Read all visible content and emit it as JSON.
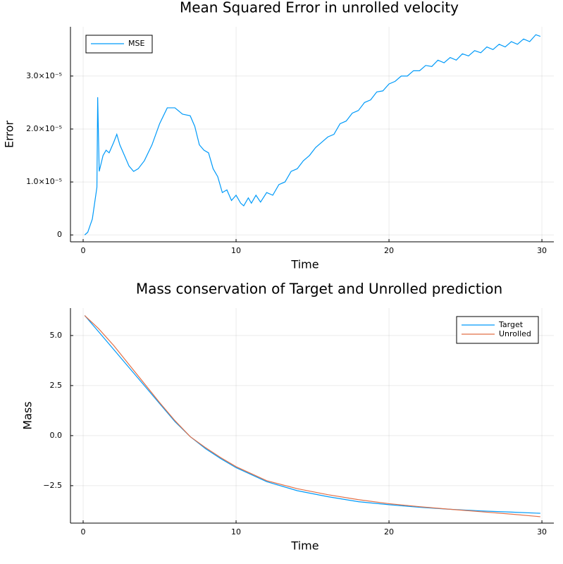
{
  "chart_data": [
    {
      "type": "line",
      "title": "Mean Squared Error in unrolled velocity",
      "x_label": "Time",
      "y_label": "Error",
      "x": [
        0.1,
        0.3,
        0.6,
        0.9,
        0.95,
        1.05,
        1.3,
        1.5,
        1.7,
        2.0,
        2.2,
        2.4,
        2.7,
        3.0,
        3.3,
        3.6,
        4.0,
        4.5,
        5.0,
        5.5,
        6.0,
        6.5,
        7.0,
        7.3,
        7.6,
        7.9,
        8.2,
        8.5,
        8.8,
        9.1,
        9.4,
        9.7,
        10.0,
        10.3,
        10.5,
        10.8,
        11.0,
        11.3,
        11.6,
        12.0,
        12.4,
        12.8,
        13.2,
        13.6,
        14.0,
        14.4,
        14.8,
        15.2,
        15.6,
        16.0,
        16.4,
        16.8,
        17.2,
        17.6,
        18.0,
        18.4,
        18.8,
        19.2,
        19.6,
        20.0,
        20.4,
        20.8,
        21.2,
        21.6,
        22.0,
        22.4,
        22.8,
        23.2,
        23.6,
        24.0,
        24.4,
        24.8,
        25.2,
        25.6,
        26.0,
        26.4,
        26.8,
        27.2,
        27.6,
        28.0,
        28.4,
        28.8,
        29.2,
        29.6,
        29.9
      ],
      "series": [
        {
          "name": "MSE",
          "color": "#009af9",
          "values": [
            0,
            5e-07,
            3e-06,
            9e-06,
            2.6e-05,
            1.2e-05,
            1.5e-05,
            1.6e-05,
            1.55e-05,
            1.75e-05,
            1.9e-05,
            1.7e-05,
            1.5e-05,
            1.3e-05,
            1.2e-05,
            1.25e-05,
            1.4e-05,
            1.7e-05,
            2.1e-05,
            2.4e-05,
            2.4e-05,
            2.28e-05,
            2.25e-05,
            2.05e-05,
            1.7e-05,
            1.6e-05,
            1.55e-05,
            1.25e-05,
            1.1e-05,
            8e-06,
            8.5e-06,
            6.5e-06,
            7.5e-06,
            6e-06,
            5.5e-06,
            7e-06,
            6e-06,
            7.5e-06,
            6.2e-06,
            8e-06,
            7.5e-06,
            9.5e-06,
            1e-05,
            1.2e-05,
            1.25e-05,
            1.4e-05,
            1.5e-05,
            1.65e-05,
            1.75e-05,
            1.85e-05,
            1.9e-05,
            2.1e-05,
            2.15e-05,
            2.3e-05,
            2.35e-05,
            2.5e-05,
            2.55e-05,
            2.7e-05,
            2.72e-05,
            2.85e-05,
            2.9e-05,
            3e-05,
            3e-05,
            3.1e-05,
            3.1e-05,
            3.2e-05,
            3.18e-05,
            3.3e-05,
            3.25e-05,
            3.35e-05,
            3.3e-05,
            3.42e-05,
            3.38e-05,
            3.48e-05,
            3.44e-05,
            3.55e-05,
            3.5e-05,
            3.6e-05,
            3.55e-05,
            3.65e-05,
            3.6e-05,
            3.7e-05,
            3.65e-05,
            3.78e-05,
            3.75e-05
          ]
        }
      ],
      "xlim": [
        -0.83,
        30.78
      ],
      "ylim": [
        -1.3e-06,
        3.93e-05
      ],
      "xticks": [
        0,
        10,
        20,
        30
      ],
      "yticks": [
        0,
        {
          "value": 1e-05,
          "label": "1.0×10⁻⁵"
        },
        {
          "value": 2e-05,
          "label": "2.0×10⁻⁵"
        },
        {
          "value": 3e-05,
          "label": "3.0×10⁻⁵"
        }
      ],
      "grid": true,
      "legend": "top-left"
    },
    {
      "type": "line",
      "title": "Mass conservation of Target and Unrolled prediction",
      "x_label": "Time",
      "y_label": "Mass",
      "x": [
        0.1,
        1,
        2,
        3,
        4,
        5,
        6,
        7,
        8,
        9,
        10,
        12,
        14,
        16,
        18,
        20,
        22,
        24,
        26,
        28,
        29.9
      ],
      "series": [
        {
          "name": "Target",
          "color": "#009af9",
          "values": [
            6.0,
            5.2,
            4.3,
            3.4,
            2.5,
            1.6,
            0.7,
            -0.05,
            -0.65,
            -1.15,
            -1.6,
            -2.3,
            -2.75,
            -3.05,
            -3.3,
            -3.45,
            -3.58,
            -3.68,
            -3.76,
            -3.82,
            -3.88
          ]
        },
        {
          "name": "Unrolled",
          "color": "#e26f46",
          "values": [
            6.0,
            5.35,
            4.5,
            3.55,
            2.6,
            1.65,
            0.75,
            -0.05,
            -0.6,
            -1.1,
            -1.55,
            -2.25,
            -2.65,
            -2.95,
            -3.2,
            -3.4,
            -3.55,
            -3.68,
            -3.8,
            -3.92,
            -4.05
          ]
        }
      ],
      "xlim": [
        -0.83,
        30.78
      ],
      "ylim": [
        -4.37,
        6.37
      ],
      "xticks": [
        0,
        10,
        20,
        30
      ],
      "yticks": [
        {
          "value": -2.5,
          "label": "−2.5"
        },
        {
          "value": 0,
          "label": "0.0"
        },
        2.5,
        {
          "value": 5,
          "label": "5.0"
        }
      ],
      "grid": true,
      "legend": "top-right"
    }
  ]
}
